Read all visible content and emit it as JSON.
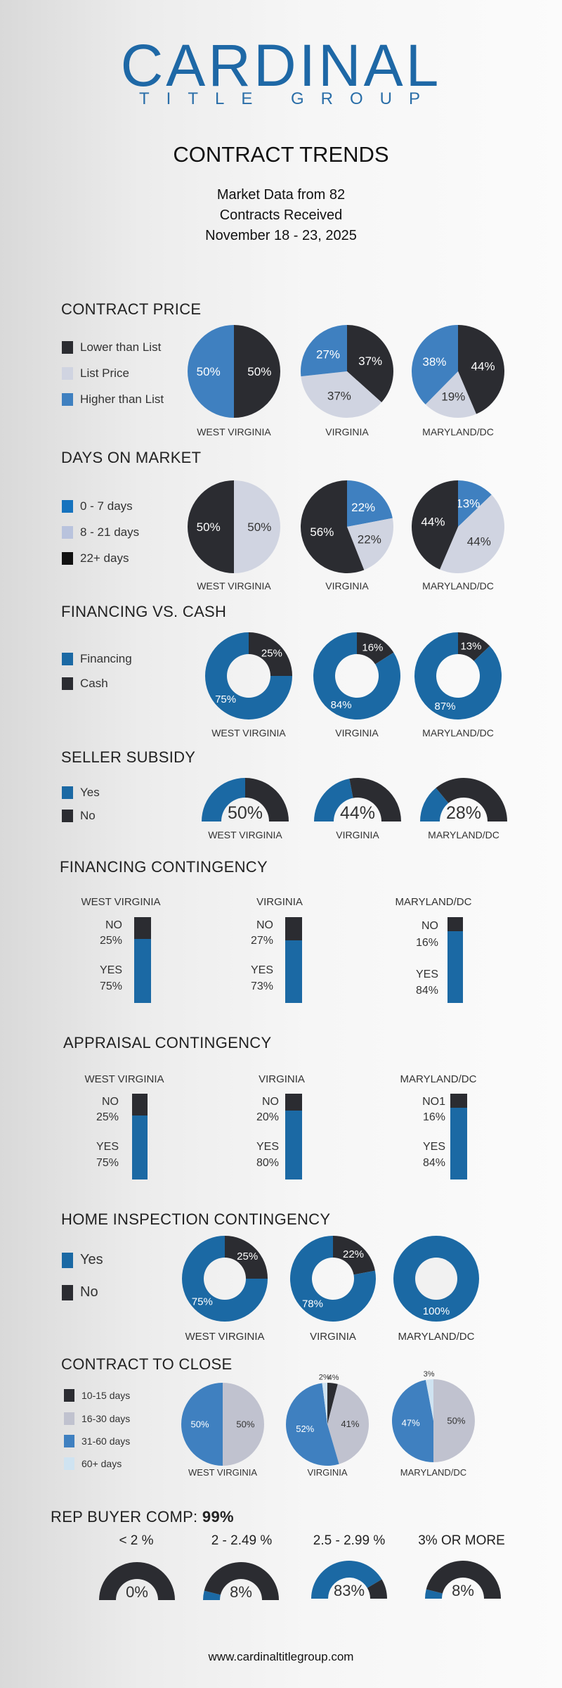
{
  "brand": {
    "name": "CARDINAL",
    "tagline": "TITLE GROUP"
  },
  "header": {
    "title": "CONTRACT TRENDS",
    "subtitle_lines": [
      "Market Data from 82",
      "Contracts Received",
      "November 18 - 23, 2025"
    ]
  },
  "colors": {
    "dark": "#2b2c31",
    "blue": "#3f80c0",
    "light": "#d0d4e1",
    "donut_blue": "#1b69a4",
    "gray": "#c0c2cf",
    "pale_blue": "#cfe3f1",
    "black": "#111111",
    "mid_blue": "#1673be",
    "lavender": "#b9c3dd"
  },
  "contract_price": {
    "title": "CONTRACT PRICE",
    "legend": [
      "Lower than List",
      "List Price",
      "Higher than List"
    ],
    "charts": [
      {
        "state": "WEST VIRGINIA",
        "values": [
          50,
          0,
          50
        ]
      },
      {
        "state": "VIRGINIA",
        "values": [
          37,
          37,
          27
        ]
      },
      {
        "state": "MARYLAND/DC",
        "values": [
          44,
          19,
          38
        ]
      }
    ]
  },
  "days_on_market": {
    "title": "DAYS ON MARKET",
    "legend": [
      "0 - 7 days",
      "8 - 21 days",
      "22+ days"
    ],
    "charts": [
      {
        "state": "WEST VIRGINIA",
        "values": [
          0,
          50,
          50
        ]
      },
      {
        "state": "VIRGINIA",
        "values": [
          22,
          22,
          56
        ]
      },
      {
        "state": "MARYLAND/DC",
        "values": [
          13,
          44,
          44
        ]
      }
    ]
  },
  "financing_vs_cash": {
    "title": "FINANCING VS. CASH",
    "legend": [
      "Financing",
      "Cash"
    ],
    "charts": [
      {
        "state": "WEST VIRGINIA",
        "values": [
          25,
          75
        ]
      },
      {
        "state": "VIRGINIA",
        "values": [
          16,
          84
        ]
      },
      {
        "state": "MARYLAND/DC",
        "values": [
          13,
          87
        ]
      }
    ]
  },
  "seller_subsidy": {
    "title": "SELLER SUBSIDY",
    "legend": [
      "Yes",
      "No"
    ],
    "charts": [
      {
        "state": "WEST VIRGINIA",
        "yes": 50,
        "label": "50%"
      },
      {
        "state": "VIRGINIA",
        "yes": 44,
        "label": "44%"
      },
      {
        "state": "MARYLAND/DC",
        "yes": 28,
        "label": "28%"
      }
    ]
  },
  "financing_contingency": {
    "title": "FINANCING CONTINGENCY",
    "charts": [
      {
        "state": "WEST VIRGINIA",
        "no_label": "NO",
        "no": "25%",
        "yes_label": "YES",
        "yes": "75%",
        "no_value": 25
      },
      {
        "state": "VIRGINIA",
        "no_label": "NO",
        "no": "27%",
        "yes_label": "YES",
        "yes": "73%",
        "no_value": 27
      },
      {
        "state": "MARYLAND/DC",
        "no_label": "NO",
        "no": "16%",
        "yes_label": "YES",
        "yes": "84%",
        "no_value": 16
      }
    ]
  },
  "appraisal_contingency": {
    "title": "APPRAISAL CONTINGENCY",
    "charts": [
      {
        "state": "WEST VIRGINIA",
        "no_label": "NO",
        "no": "25%",
        "yes_label": "YES",
        "yes": "75%",
        "no_value": 25
      },
      {
        "state": "VIRGINIA",
        "no_label": "NO",
        "no": "20%",
        "yes_label": "YES",
        "yes": "80%",
        "no_value": 20
      },
      {
        "state": "MARYLAND/DC",
        "no_label": "NO1",
        "no": "16%",
        "yes_label": "YES",
        "yes": "84%",
        "no_value": 16
      }
    ]
  },
  "home_inspection": {
    "title": "HOME INSPECTION CONTINGENCY",
    "legend": [
      "Yes",
      "No"
    ],
    "charts": [
      {
        "state": "WEST VIRGINIA",
        "values": [
          25,
          75
        ]
      },
      {
        "state": "VIRGINIA",
        "values": [
          22,
          78
        ]
      },
      {
        "state": "MARYLAND/DC",
        "values": [
          0,
          100
        ]
      }
    ]
  },
  "contract_to_close": {
    "title": "CONTRACT TO CLOSE",
    "legend": [
      "10-15 days",
      "16-30 days",
      "31-60 days",
      "60+ days"
    ],
    "charts": [
      {
        "state": "WEST VIRGINIA",
        "values": [
          0,
          50,
          50,
          0
        ]
      },
      {
        "state": "VIRGINIA",
        "values": [
          4,
          41,
          52,
          2
        ]
      },
      {
        "state": "MARYLAND/DC",
        "values": [
          0,
          50,
          47,
          3
        ]
      }
    ]
  },
  "rep_buyer_comp": {
    "title": "REP BUYER COMP:",
    "total": "99%",
    "charts": [
      {
        "category": "< 2 %",
        "value": 0,
        "label": "0%"
      },
      {
        "category": "2 - 2.49 %",
        "value": 8,
        "label": "8%"
      },
      {
        "category": "2.5 - 2.99 %",
        "value": 83,
        "label": "83%"
      },
      {
        "category": "3% OR MORE",
        "value": 8,
        "label": "8%"
      }
    ]
  },
  "footer": {
    "url": "www.cardinaltitlegroup.com"
  }
}
